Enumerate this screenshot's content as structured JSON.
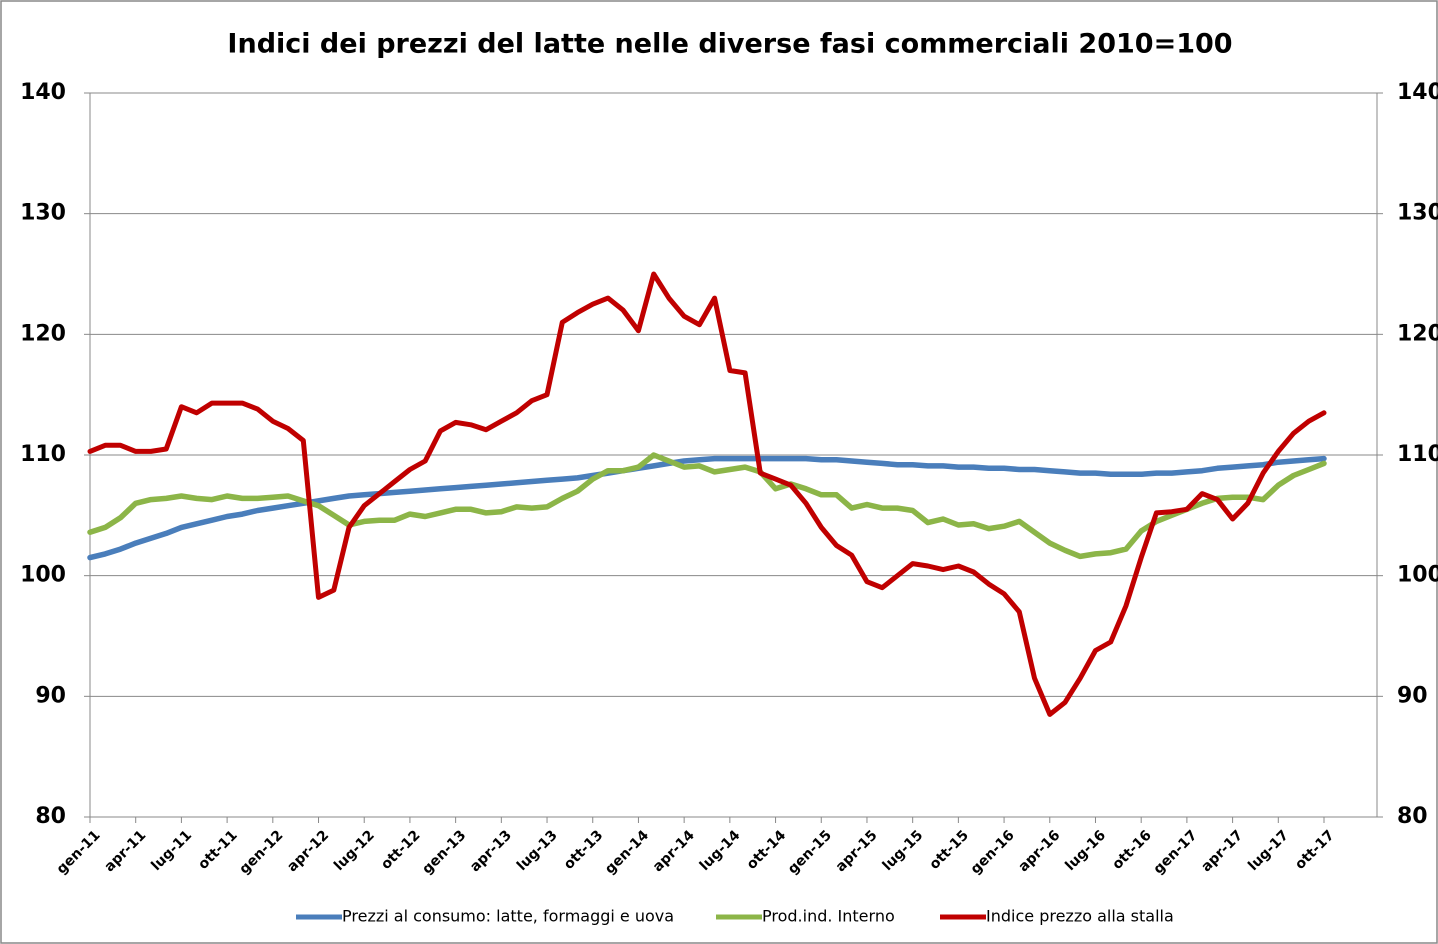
{
  "chart_data": {
    "type": "line",
    "title": "Indici dei prezzi del latte nelle diverse fasi commerciali 2010=100",
    "categories": [
      "gen-11",
      null,
      null,
      "apr-11",
      null,
      null,
      "lug-11",
      null,
      null,
      "ott-11",
      null,
      null,
      "gen-12",
      null,
      null,
      "apr-12",
      null,
      null,
      "lug-12",
      null,
      null,
      "ott-12",
      null,
      null,
      "gen-13",
      null,
      null,
      "apr-13",
      null,
      null,
      "lug-13",
      null,
      null,
      "ott-13",
      null,
      null,
      "gen-14",
      null,
      null,
      "apr-14",
      null,
      null,
      "lug-14",
      null,
      null,
      "ott-14",
      null,
      null,
      "gen-15",
      null,
      null,
      "apr-15",
      null,
      null,
      "lug-15",
      null,
      null,
      "ott-15",
      null,
      null,
      "gen-16",
      null,
      null,
      "apr-16",
      null,
      null,
      "lug-16",
      null,
      null,
      "ott-16",
      null,
      null,
      "gen-17",
      null,
      null,
      "apr-17",
      null,
      null,
      "lug-17",
      null,
      null,
      "ott-17"
    ],
    "series": [
      {
        "name": "Prezzi al consumo: latte, formaggi e uova",
        "color": "#4a7ebb",
        "values": [
          101.5,
          101.8,
          102.2,
          102.7,
          103.1,
          103.5,
          104.0,
          104.3,
          104.6,
          104.9,
          105.1,
          105.4,
          105.6,
          105.8,
          106.0,
          106.2,
          106.4,
          106.6,
          106.7,
          106.8,
          106.9,
          107.0,
          107.1,
          107.2,
          107.3,
          107.4,
          107.5,
          107.6,
          107.7,
          107.8,
          107.9,
          108.0,
          108.1,
          108.3,
          108.5,
          108.7,
          108.9,
          109.1,
          109.3,
          109.5,
          109.6,
          109.7,
          109.7,
          109.7,
          109.7,
          109.7,
          109.7,
          109.7,
          109.6,
          109.6,
          109.5,
          109.4,
          109.3,
          109.2,
          109.2,
          109.1,
          109.1,
          109.0,
          109.0,
          108.9,
          108.9,
          108.8,
          108.8,
          108.7,
          108.6,
          108.5,
          108.5,
          108.4,
          108.4,
          108.4,
          108.5,
          108.5,
          108.6,
          108.7,
          108.9,
          109.0,
          109.1,
          109.2,
          109.4,
          109.5,
          109.6,
          109.7
        ]
      },
      {
        "name": "Prod.ind. Interno",
        "color": "#8cb548",
        "values": [
          103.6,
          104.0,
          104.8,
          106.0,
          106.3,
          106.4,
          106.6,
          106.4,
          106.3,
          106.6,
          106.4,
          106.4,
          106.5,
          106.6,
          106.2,
          105.8,
          105.0,
          104.2,
          104.5,
          104.6,
          104.6,
          105.1,
          104.9,
          105.2,
          105.5,
          105.5,
          105.2,
          105.3,
          105.7,
          105.6,
          105.7,
          106.4,
          107.0,
          108.0,
          108.7,
          108.7,
          109.0,
          110.0,
          109.5,
          109.0,
          109.1,
          108.6,
          108.8,
          109.0,
          108.6,
          107.2,
          107.6,
          107.2,
          106.7,
          106.7,
          105.6,
          105.9,
          105.6,
          105.6,
          105.4,
          104.4,
          104.7,
          104.2,
          104.3,
          103.9,
          104.1,
          104.5,
          103.6,
          102.7,
          102.1,
          101.6,
          101.8,
          101.9,
          102.2,
          103.7,
          104.5,
          105.0,
          105.5,
          106.0,
          106.4,
          106.5,
          106.5,
          106.3,
          107.5,
          108.3,
          108.8,
          109.3
        ]
      },
      {
        "name": "Indice prezzo alla stalla",
        "color": "#c00000",
        "values": [
          110.3,
          110.8,
          110.8,
          110.3,
          110.3,
          110.5,
          114.0,
          113.5,
          114.3,
          114.3,
          114.3,
          113.8,
          112.8,
          112.2,
          111.2,
          98.2,
          98.8,
          104.0,
          105.8,
          106.8,
          107.8,
          108.8,
          109.5,
          112.0,
          112.7,
          112.5,
          112.1,
          112.8,
          113.5,
          114.5,
          115.0,
          121.0,
          121.8,
          122.5,
          123.0,
          122.0,
          120.3,
          125.0,
          123.0,
          121.5,
          120.8,
          123.0,
          117.0,
          116.8,
          108.5,
          108.0,
          107.5,
          106.0,
          104.0,
          102.5,
          101.7,
          99.5,
          99.0,
          100.0,
          101.0,
          100.8,
          100.5,
          100.8,
          100.3,
          99.3,
          98.5,
          97.0,
          91.5,
          88.5,
          89.5,
          91.5,
          93.8,
          94.5,
          97.5,
          101.5,
          105.2,
          105.3,
          105.5,
          106.8,
          106.3,
          104.7,
          106.0,
          108.5,
          110.3,
          111.8,
          112.8,
          113.5
        ]
      }
    ],
    "ylim": [
      80,
      140
    ],
    "yticks": [
      80,
      90,
      100,
      110,
      120,
      130,
      140
    ],
    "y2lim": [
      80,
      140
    ],
    "y2ticks": [
      80,
      90,
      100,
      110,
      120,
      130,
      140
    ],
    "grid": true,
    "legend": "bottom"
  }
}
